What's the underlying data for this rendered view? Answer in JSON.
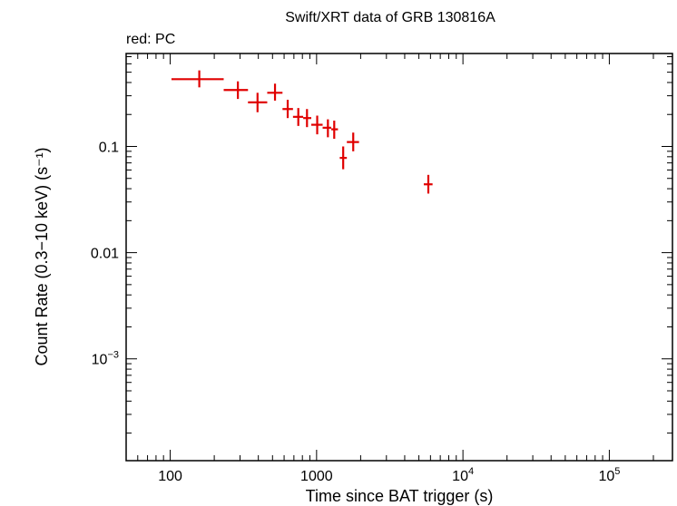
{
  "chart_data": {
    "type": "scatter",
    "title": "Swift/XRT data of GRB 130816A",
    "subtitle": "red: PC",
    "xlabel": "Time since BAT trigger (s)",
    "ylabel": "Count Rate (0.3−10 keV) (s⁻¹)",
    "xscale": "log",
    "yscale": "log",
    "xlim": [
      50,
      270000
    ],
    "ylim": [
      0.00011,
      0.75
    ],
    "x_ticks": [
      {
        "value": 100,
        "label": "100"
      },
      {
        "value": 1000,
        "label": "1000"
      },
      {
        "value": 10000,
        "base": "10",
        "exp": "4"
      },
      {
        "value": 100000,
        "base": "10",
        "exp": "5"
      }
    ],
    "y_ticks": [
      {
        "value": 0.1,
        "label": "0.1"
      },
      {
        "value": 0.01,
        "label": "0.01"
      },
      {
        "value": 0.001,
        "base": "10",
        "exp": "−3"
      }
    ],
    "grid": false,
    "series": [
      {
        "name": "PC",
        "color": "#e00000",
        "points": [
          {
            "x": 158,
            "xlo": 102,
            "xhi": 232,
            "y": 0.43,
            "ylo": 0.36,
            "yhi": 0.52
          },
          {
            "x": 290,
            "xlo": 232,
            "xhi": 340,
            "y": 0.34,
            "ylo": 0.28,
            "yhi": 0.41
          },
          {
            "x": 395,
            "xlo": 340,
            "xhi": 460,
            "y": 0.26,
            "ylo": 0.21,
            "yhi": 0.32
          },
          {
            "x": 520,
            "xlo": 460,
            "xhi": 585,
            "y": 0.32,
            "ylo": 0.27,
            "yhi": 0.39
          },
          {
            "x": 635,
            "xlo": 585,
            "xhi": 690,
            "y": 0.225,
            "ylo": 0.185,
            "yhi": 0.275
          },
          {
            "x": 750,
            "xlo": 690,
            "xhi": 810,
            "y": 0.19,
            "ylo": 0.156,
            "yhi": 0.23
          },
          {
            "x": 860,
            "xlo": 810,
            "xhi": 920,
            "y": 0.185,
            "ylo": 0.152,
            "yhi": 0.225
          },
          {
            "x": 1010,
            "xlo": 920,
            "xhi": 1100,
            "y": 0.16,
            "ylo": 0.13,
            "yhi": 0.195
          },
          {
            "x": 1195,
            "xlo": 1100,
            "xhi": 1260,
            "y": 0.15,
            "ylo": 0.122,
            "yhi": 0.18
          },
          {
            "x": 1320,
            "xlo": 1260,
            "xhi": 1400,
            "y": 0.145,
            "ylo": 0.118,
            "yhi": 0.175
          },
          {
            "x": 1520,
            "xlo": 1440,
            "xhi": 1610,
            "y": 0.078,
            "ylo": 0.061,
            "yhi": 0.1
          },
          {
            "x": 1780,
            "xlo": 1610,
            "xhi": 1950,
            "y": 0.11,
            "ylo": 0.09,
            "yhi": 0.135
          },
          {
            "x": 5800,
            "xlo": 5400,
            "xhi": 6200,
            "y": 0.044,
            "ylo": 0.036,
            "yhi": 0.054
          }
        ]
      }
    ]
  }
}
